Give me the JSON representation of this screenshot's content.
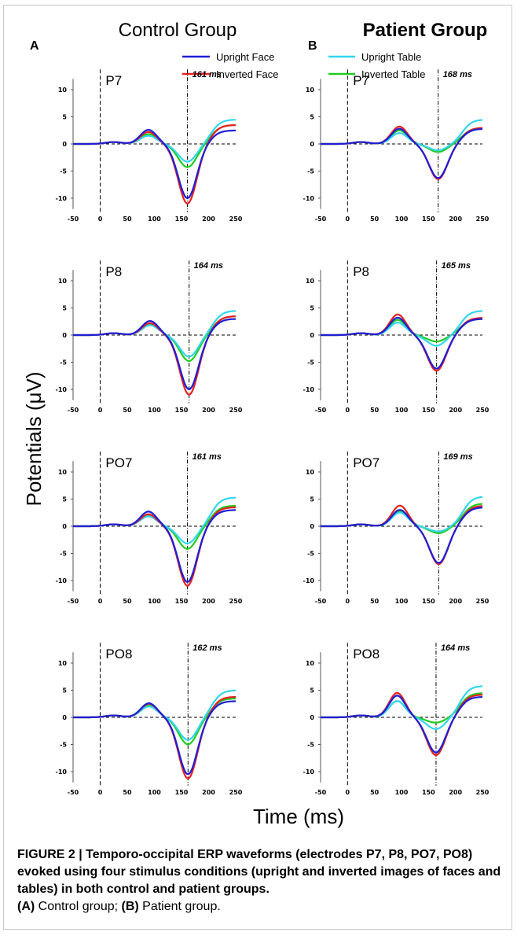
{
  "figure": {
    "col_titles": [
      "Control Group",
      "Patient Group"
    ],
    "panel_letters": [
      "A",
      "B"
    ],
    "y_label": "Potentials (μV)",
    "x_label": "Time (ms)",
    "caption": {
      "title": "FIGURE 2 | Temporo-occipital ERP waveforms (electrodes P7, P8, PO7, PO8) evoked using four stimulus conditions (upright and inverted images of faces and tables) in both control and patient groups.",
      "a_label": "(A)",
      "a_text": " Control group; ",
      "b_label": "(B)",
      "b_text": " Patient group."
    }
  },
  "legend": {
    "left": [
      {
        "name": "Upright Face",
        "color": "#1f1fd6"
      },
      {
        "name": "Inverted Face",
        "color": "#e82020"
      }
    ],
    "right": [
      {
        "name": "Upright Table",
        "color": "#33d6f0"
      },
      {
        "name": "Inverted Table",
        "color": "#22cc22"
      }
    ]
  },
  "colors": {
    "upright_face": "#1f1fd6",
    "inverted_face": "#e82020",
    "upright_table": "#33d6f0",
    "inverted_table": "#22cc22"
  },
  "chart_data": [
    {
      "type": "line",
      "group": "Control Group",
      "electrode": "P7",
      "latency_label": "161 ms",
      "peak_ms": 161,
      "xlim": [
        -50,
        250
      ],
      "ylim": [
        -12,
        12
      ],
      "x_ticks": [
        -50,
        0,
        50,
        100,
        150,
        200,
        250
      ],
      "y_ticks": [
        10,
        5,
        0,
        -5,
        -10
      ],
      "x_tick_labels": [
        "-50",
        "0",
        "50",
        "100",
        "150",
        "200",
        "250"
      ],
      "y_tick_labels": [
        "10",
        "5",
        "0",
        "-5",
        "-10"
      ],
      "series": [
        {
          "name": "Upright Face",
          "peak": -10,
          "pos": 2.6,
          "end": 2.5
        },
        {
          "name": "Inverted Face",
          "peak": -11,
          "pos": 2.2,
          "end": 3.5
        },
        {
          "name": "Upright Table",
          "peak": -3.3,
          "pos": 1.5,
          "end": 4.5
        },
        {
          "name": "Inverted Table",
          "peak": -4.3,
          "pos": 1.8,
          "end": 3.5
        }
      ]
    },
    {
      "type": "line",
      "group": "Patient Group",
      "electrode": "P7",
      "latency_label": "168 ms",
      "peak_ms": 168,
      "xlim": [
        -50,
        250
      ],
      "ylim": [
        -12,
        12
      ],
      "x_ticks": [
        -50,
        0,
        50,
        100,
        150,
        200,
        250
      ],
      "y_ticks": [
        10,
        5,
        0,
        -5,
        -10
      ],
      "x_tick_labels": [
        "-50",
        "0",
        "50",
        "100",
        "150",
        "200",
        "250"
      ],
      "y_tick_labels": [
        "10",
        "5",
        "0",
        "-5",
        "-10"
      ],
      "series": [
        {
          "name": "Upright Face",
          "peak": -6.3,
          "pos": 2.8,
          "end": 2.8
        },
        {
          "name": "Inverted Face",
          "peak": -6.5,
          "pos": 3.2,
          "end": 3.0
        },
        {
          "name": "Upright Table",
          "peak": -1.2,
          "pos": 2.0,
          "end": 4.5
        },
        {
          "name": "Inverted Table",
          "peak": -1.5,
          "pos": 2.5,
          "end": 3.0
        }
      ]
    },
    {
      "type": "line",
      "group": "Control Group",
      "electrode": "P8",
      "latency_label": "164 ms",
      "peak_ms": 164,
      "xlim": [
        -50,
        250
      ],
      "ylim": [
        -12,
        12
      ],
      "x_ticks": [
        -50,
        0,
        50,
        100,
        150,
        200,
        250
      ],
      "y_ticks": [
        10,
        5,
        0,
        -5,
        -10
      ],
      "x_tick_labels": [
        "-50",
        "0",
        "50",
        "100",
        "150",
        "200",
        "250"
      ],
      "y_tick_labels": [
        "10",
        "5",
        "0",
        "-5",
        "-10"
      ],
      "series": [
        {
          "name": "Upright Face",
          "peak": -10,
          "pos": 2.6,
          "end": 3.0
        },
        {
          "name": "Inverted Face",
          "peak": -11,
          "pos": 2.2,
          "end": 3.5
        },
        {
          "name": "Upright Table",
          "peak": -4.0,
          "pos": 1.8,
          "end": 4.5
        },
        {
          "name": "Inverted Table",
          "peak": -4.8,
          "pos": 2.0,
          "end": 3.5
        }
      ]
    },
    {
      "type": "line",
      "group": "Patient Group",
      "electrode": "P8",
      "latency_label": "165 ms",
      "peak_ms": 165,
      "xlim": [
        -50,
        250
      ],
      "ylim": [
        -12,
        12
      ],
      "x_ticks": [
        -50,
        0,
        50,
        100,
        150,
        200,
        250
      ],
      "y_ticks": [
        10,
        5,
        0,
        -5,
        -10
      ],
      "x_tick_labels": [
        "-50",
        "0",
        "50",
        "100",
        "150",
        "200",
        "250"
      ],
      "y_tick_labels": [
        "10",
        "5",
        "0",
        "-5",
        "-10"
      ],
      "series": [
        {
          "name": "Upright Face",
          "peak": -6.2,
          "pos": 3.2,
          "end": 3.0
        },
        {
          "name": "Inverted Face",
          "peak": -6.6,
          "pos": 3.8,
          "end": 3.2
        },
        {
          "name": "Upright Table",
          "peak": -2.0,
          "pos": 2.3,
          "end": 4.5
        },
        {
          "name": "Inverted Table",
          "peak": -1.2,
          "pos": 2.8,
          "end": 3.0
        }
      ]
    },
    {
      "type": "line",
      "group": "Control Group",
      "electrode": "PO7",
      "latency_label": "161 ms",
      "peak_ms": 161,
      "xlim": [
        -50,
        250
      ],
      "ylim": [
        -12,
        12
      ],
      "x_ticks": [
        -50,
        0,
        50,
        100,
        150,
        200,
        250
      ],
      "y_ticks": [
        10,
        5,
        0,
        -5,
        -10
      ],
      "x_tick_labels": [
        "-50",
        "0",
        "50",
        "100",
        "150",
        "200",
        "250"
      ],
      "y_tick_labels": [
        "10",
        "5",
        "0",
        "-5",
        "-10"
      ],
      "series": [
        {
          "name": "Upright Face",
          "peak": -10.3,
          "pos": 2.7,
          "end": 3.0
        },
        {
          "name": "Inverted Face",
          "peak": -11,
          "pos": 2.2,
          "end": 3.5
        },
        {
          "name": "Upright Table",
          "peak": -3.2,
          "pos": 1.8,
          "end": 5.3
        },
        {
          "name": "Inverted Table",
          "peak": -4.2,
          "pos": 2.0,
          "end": 3.8
        }
      ]
    },
    {
      "type": "line",
      "group": "Patient Group",
      "electrode": "PO7",
      "latency_label": "169 ms",
      "peak_ms": 169,
      "xlim": [
        -50,
        250
      ],
      "ylim": [
        -12,
        12
      ],
      "x_ticks": [
        -50,
        0,
        50,
        100,
        150,
        200,
        250
      ],
      "y_ticks": [
        10,
        5,
        0,
        -5,
        -10
      ],
      "x_tick_labels": [
        "-50",
        "0",
        "50",
        "100",
        "150",
        "200",
        "250"
      ],
      "y_tick_labels": [
        "10",
        "5",
        "0",
        "-5",
        "-10"
      ],
      "series": [
        {
          "name": "Upright Face",
          "peak": -6.8,
          "pos": 3.0,
          "end": 3.5
        },
        {
          "name": "Inverted Face",
          "peak": -7.0,
          "pos": 3.8,
          "end": 3.8
        },
        {
          "name": "Upright Table",
          "peak": -1.0,
          "pos": 2.5,
          "end": 5.5
        },
        {
          "name": "Inverted Table",
          "peak": -1.3,
          "pos": 2.8,
          "end": 4.2
        }
      ]
    },
    {
      "type": "line",
      "group": "Control Group",
      "electrode": "PO8",
      "latency_label": "162 ms",
      "peak_ms": 162,
      "xlim": [
        -50,
        250
      ],
      "ylim": [
        -12,
        12
      ],
      "x_ticks": [
        -50,
        0,
        50,
        100,
        150,
        200,
        250
      ],
      "y_ticks": [
        10,
        5,
        0,
        -5,
        -10
      ],
      "x_tick_labels": [
        "-50",
        "0",
        "50",
        "100",
        "150",
        "200",
        "250"
      ],
      "y_tick_labels": [
        "10",
        "5",
        "0",
        "-5",
        "-10"
      ],
      "series": [
        {
          "name": "Upright Face",
          "peak": -10.5,
          "pos": 2.6,
          "end": 3.0
        },
        {
          "name": "Inverted Face",
          "peak": -11.3,
          "pos": 2.5,
          "end": 3.8
        },
        {
          "name": "Upright Table",
          "peak": -4.2,
          "pos": 2.0,
          "end": 5.0
        },
        {
          "name": "Inverted Table",
          "peak": -5.0,
          "pos": 2.2,
          "end": 3.5
        }
      ]
    },
    {
      "type": "line",
      "group": "Patient Group",
      "electrode": "PO8",
      "latency_label": "164 ms",
      "peak_ms": 164,
      "xlim": [
        -50,
        250
      ],
      "ylim": [
        -12,
        12
      ],
      "x_ticks": [
        -50,
        0,
        50,
        100,
        150,
        200,
        250
      ],
      "y_ticks": [
        10,
        5,
        0,
        -5,
        -10
      ],
      "x_tick_labels": [
        "-50",
        "0",
        "50",
        "100",
        "150",
        "200",
        "250"
      ],
      "y_tick_labels": [
        "10",
        "5",
        "0",
        "-5",
        "-10"
      ],
      "series": [
        {
          "name": "Upright Face",
          "peak": -6.5,
          "pos": 4.0,
          "end": 3.8
        },
        {
          "name": "Inverted Face",
          "peak": -7.0,
          "pos": 4.5,
          "end": 4.2
        },
        {
          "name": "Upright Table",
          "peak": -2.2,
          "pos": 3.0,
          "end": 5.8
        },
        {
          "name": "Inverted Table",
          "peak": -1.0,
          "pos": 3.0,
          "end": 4.5
        }
      ]
    }
  ]
}
